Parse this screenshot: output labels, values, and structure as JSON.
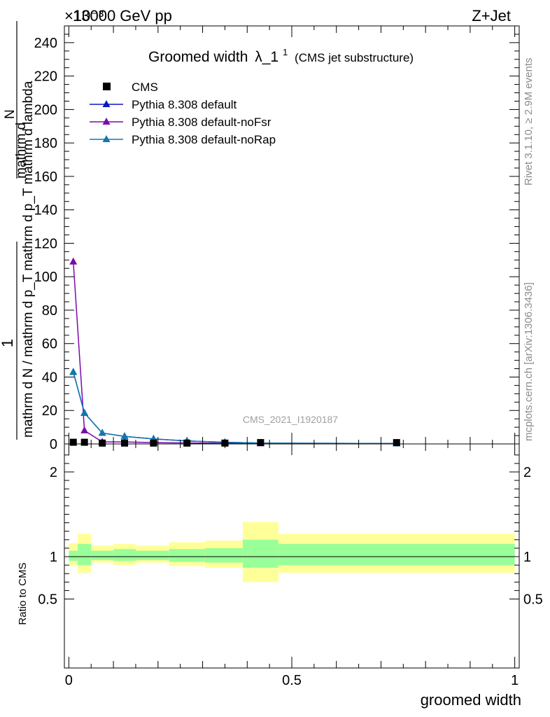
{
  "header": {
    "left": "13000 GeV pp",
    "right": "Z+Jet",
    "exponent": "×10⁻³",
    "title_main": "Groomed width",
    "title_lambda": "λ_1",
    "title_sup": "1",
    "title_sub": "(CMS jet substructure)",
    "watermark": "CMS_2021_I1920187",
    "side_rivet": "Rivet 3.1.10, ≥ 2.9M events",
    "side_mcplots": "mcplots.cern.ch [arXiv:1306.3436]"
  },
  "y_axis_label": {
    "numerator_1": "1",
    "denominator_1": "mathrm d N / mathrm d p_T mathrm d p_T mathrm d lambda",
    "numerator_2": "mathrm d",
    "numerator_2b": "N"
  },
  "ratio_axis_label": "Ratio to CMS",
  "x_axis_label": "groomed width",
  "colors": {
    "cms": "#000000",
    "default": "#0b17c4",
    "noFsr": "#7a0aa8",
    "noRap": "#1278ad",
    "band_outer": "#ffff99",
    "band_inner": "#99ff99"
  },
  "chart_data": [
    {
      "type": "line",
      "panel": "main",
      "ylim": [
        0,
        0.25
      ],
      "xlim": [
        -0.01,
        1.01
      ],
      "y_ticks": [
        0,
        20,
        40,
        60,
        80,
        100,
        120,
        140,
        160,
        180,
        200,
        220,
        240
      ],
      "legend_placement": "top-left",
      "series": [
        {
          "name": "CMS",
          "marker": "square",
          "x": [
            0.01,
            0.035,
            0.075,
            0.125,
            0.19,
            0.265,
            0.35,
            0.43,
            0.735
          ],
          "y": [
            0.001,
            0.001,
            0.0005,
            0.0005,
            0.0005,
            0.0005,
            0.0005,
            0.0008,
            0.0008
          ]
        },
        {
          "name": "Pythia 8.308 default",
          "marker": "triangle",
          "x": [
            0.01,
            0.035,
            0.075,
            0.125,
            0.19,
            0.265,
            0.35,
            0.43,
            0.735
          ],
          "y": [
            0.043,
            0.0185,
            0.0065,
            0.0045,
            0.003,
            0.0018,
            0.001,
            0.0005,
            0.0002
          ]
        },
        {
          "name": "Pythia 8.308 default-noFsr",
          "marker": "triangle",
          "x": [
            0.01,
            0.035,
            0.075,
            0.125,
            0.19,
            0.265,
            0.35,
            0.43,
            0.735
          ],
          "y": [
            0.109,
            0.008,
            0.0012,
            0.0012,
            0.0008,
            0.0006,
            0.0004,
            0.0003,
            0.0002
          ]
        },
        {
          "name": "Pythia 8.308 default-noRap",
          "marker": "triangle",
          "x": [
            0.01,
            0.035,
            0.075,
            0.125,
            0.19,
            0.265,
            0.35,
            0.43,
            0.735
          ],
          "y": [
            0.043,
            0.0185,
            0.0065,
            0.0045,
            0.003,
            0.0018,
            0.001,
            0.0005,
            0.0002
          ]
        }
      ]
    },
    {
      "type": "area",
      "panel": "ratio",
      "ylim": [
        0.4,
        2.3
      ],
      "y_ticks": [
        0.5,
        1,
        2
      ],
      "x_ticks": [
        0,
        0.5,
        1
      ],
      "bins": [
        0,
        0.02,
        0.05,
        0.1,
        0.15,
        0.225,
        0.305,
        0.39,
        0.47,
        1.0
      ],
      "outer_lo": [
        0.9,
        0.81,
        0.93,
        0.9,
        0.93,
        0.89,
        0.87,
        0.7,
        0.81
      ],
      "outer_hi": [
        1.16,
        1.27,
        1.13,
        1.15,
        1.13,
        1.17,
        1.19,
        1.41,
        1.27
      ],
      "inner_lo": [
        0.95,
        0.9,
        0.96,
        0.95,
        0.96,
        0.94,
        0.93,
        0.87,
        0.9
      ],
      "inner_hi": [
        1.07,
        1.15,
        1.07,
        1.09,
        1.07,
        1.09,
        1.1,
        1.2,
        1.15
      ]
    }
  ]
}
